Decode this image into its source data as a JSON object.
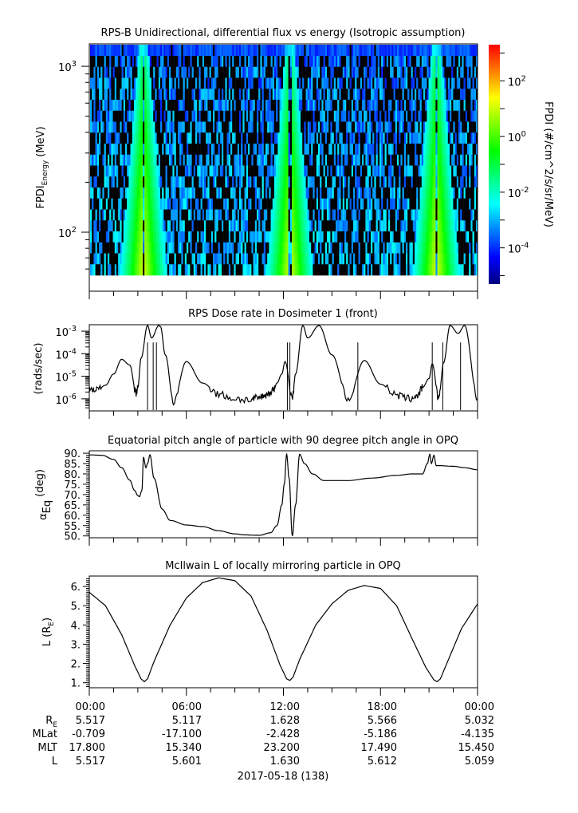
{
  "chart_data": [
    {
      "type": "heatmap",
      "title": "RPS-B  Unidirectional, differential flux vs energy (Isotropic assumption)",
      "ylabel_main": "FPDI",
      "ylabel_sub": "Energy",
      "ylabel_unit": "(MeV)",
      "yscale": "log",
      "ylim": [
        55,
        1350
      ],
      "yticks": [
        {
          "v": 100,
          "base": "10",
          "exp": "2"
        },
        {
          "v": 1000,
          "base": "10",
          "exp": "3"
        }
      ],
      "xlim": [
        0,
        24
      ],
      "belt_crossings_hours": [
        3.3,
        12.35,
        21.4
      ],
      "colorbar": {
        "label": "FPDI (#/cm^2/s/sr/MeV)",
        "scale": "log",
        "range_exp": [
          -5.3,
          3.3
        ],
        "ticks": [
          {
            "base": "10",
            "exp": "-4",
            "v": -4
          },
          {
            "base": "10",
            "exp": "-2",
            "v": -2
          },
          {
            "base": "10",
            "exp": "0",
            "v": 0
          },
          {
            "base": "10",
            "exp": "2",
            "v": 2
          }
        ],
        "colors": [
          "#00007f",
          "#0000ff",
          "#007fff",
          "#00ffff",
          "#00ff7f",
          "#00ff00",
          "#7fff00",
          "#ffff00",
          "#ff7f00",
          "#ff0000"
        ]
      }
    },
    {
      "type": "line",
      "title": "RPS  Dose rate in Dosimeter 1 (front)",
      "ylabel": "(rads/sec)",
      "yscale": "log",
      "ylim_exp": [
        -6.5,
        -2.75
      ],
      "yticks": [
        {
          "base": "10",
          "exp": "-3",
          "v": -3
        },
        {
          "base": "10",
          "exp": "-4",
          "v": -4
        },
        {
          "base": "10",
          "exp": "-5",
          "v": -5
        },
        {
          "base": "10",
          "exp": "-6",
          "v": -6
        }
      ],
      "xlim": [
        0,
        24
      ],
      "x": [
        0,
        0.5,
        1,
        1.5,
        2.0,
        2.5,
        2.9,
        3.0,
        3.2,
        3.6,
        3.85,
        4.3,
        4.4,
        4.7,
        5.2,
        6.0,
        7.0,
        8.0,
        9.0,
        10.0,
        10.5,
        11.0,
        11.4,
        11.6,
        11.9,
        12.1,
        12.55,
        12.75,
        13.2,
        13.5,
        14.2,
        15.0,
        16.0,
        17.0,
        18.0,
        19.0,
        19.8,
        20.3,
        20.6,
        21.0,
        21.2,
        21.6,
        21.9,
        22.3,
        22.8,
        23.2,
        24.0
      ],
      "log10_y": [
        -5.55,
        -5.6,
        -5.4,
        -4.9,
        -4.25,
        -4.5,
        -5.75,
        -5.5,
        -4.2,
        -2.75,
        -3.3,
        -2.75,
        -2.8,
        -4.05,
        -6.1,
        -4.35,
        -5.3,
        -5.8,
        -6.0,
        -6.05,
        -5.95,
        -5.8,
        -5.6,
        -5.3,
        -4.9,
        -4.35,
        -5.95,
        -4.9,
        -2.75,
        -3.3,
        -2.75,
        -4.05,
        -6.0,
        -4.3,
        -5.35,
        -5.85,
        -6.0,
        -5.85,
        -5.5,
        -5.1,
        -4.45,
        -6.0,
        -4.4,
        -2.75,
        -3.1,
        -2.75,
        -6.0
      ]
    },
    {
      "type": "line",
      "title": "Equatorial pitch angle of particle with 90 degree pitch angle in OPQ",
      "ylabel": "α",
      "ylabel_sub": "Eq",
      "ylabel_unit": "(deg)",
      "ylim": [
        49.5,
        90.8
      ],
      "yticks": [
        "50.",
        "55.",
        "60.",
        "65.",
        "70.",
        "75.",
        "80.",
        "85.",
        "90."
      ],
      "xlim": [
        0,
        24
      ],
      "x": [
        0,
        0.8,
        1.5,
        2.0,
        2.5,
        2.8,
        3.0,
        3.1,
        3.25,
        3.35,
        3.5,
        3.6,
        3.75,
        4.0,
        4.5,
        5.0,
        6.0,
        7.0,
        8.0,
        9.0,
        9.6,
        10.5,
        11.2,
        11.6,
        11.9,
        12.05,
        12.2,
        12.35,
        12.55,
        12.75,
        13.0,
        13.3,
        13.8,
        14.5,
        16.0,
        17.5,
        19.0,
        20.0,
        20.6,
        20.9,
        21.05,
        21.15,
        21.3,
        21.45,
        21.6,
        22.5,
        23.2,
        24.0
      ],
      "y": [
        89.2,
        89.0,
        87.0,
        83.0,
        77.0,
        72.0,
        69.5,
        69.0,
        72.0,
        88.0,
        83.0,
        85.0,
        89.2,
        78.0,
        63.0,
        57.5,
        55.3,
        54.5,
        52.5,
        51.0,
        50.5,
        50.3,
        51.5,
        55.0,
        65.0,
        75.0,
        89.5,
        78.0,
        50.0,
        65.0,
        89.5,
        85.0,
        80.0,
        76.8,
        76.8,
        78.0,
        79.3,
        80.0,
        80.0,
        85.0,
        89.5,
        85.0,
        89.0,
        84.0,
        84.0,
        83.7,
        83.0,
        82.0
      ]
    },
    {
      "type": "line",
      "title": "McIlwain L of locally mirroring particle in OPQ",
      "ylabel": "L (R",
      "ylabel_sub": "E",
      "ylabel_unit": ")",
      "ylim": [
        0.78,
        6.5
      ],
      "yticks": [
        "1.",
        "2.",
        "3.",
        "4.",
        "5.",
        "6."
      ],
      "xlim": [
        0,
        24
      ],
      "x": [
        0,
        1.0,
        2.0,
        2.8,
        3.2,
        3.4,
        3.6,
        4.0,
        5.0,
        6.0,
        7.0,
        8.0,
        9.0,
        10.0,
        11.0,
        11.8,
        12.2,
        12.4,
        12.6,
        13.0,
        14.0,
        15.0,
        16.0,
        17.0,
        18.0,
        19.0,
        20.0,
        20.8,
        21.3,
        21.5,
        21.7,
        22.2,
        23.0,
        24.0
      ],
      "y": [
        5.7,
        5.0,
        3.5,
        1.9,
        1.2,
        1.05,
        1.2,
        2.1,
        4.0,
        5.4,
        6.2,
        6.45,
        6.3,
        5.5,
        3.7,
        1.9,
        1.2,
        1.12,
        1.3,
        2.2,
        4.0,
        5.1,
        5.8,
        6.05,
        5.9,
        5.0,
        3.2,
        1.8,
        1.15,
        1.05,
        1.2,
        2.2,
        3.8,
        5.1
      ]
    }
  ],
  "time_axis": {
    "tick_labels": [
      "00:00",
      "06:00",
      "12:00",
      "18:00",
      "00:00"
    ],
    "rows": [
      {
        "label": "R",
        "label_sub": "E",
        "values": [
          "5.517",
          "5.117",
          "1.628",
          "5.566",
          "5.032"
        ]
      },
      {
        "label": "MLat",
        "label_sub": "",
        "values": [
          "-0.709",
          "-17.100",
          "-2.428",
          "-5.186",
          "-4.135"
        ]
      },
      {
        "label": "MLT",
        "label_sub": "",
        "values": [
          "17.800",
          "15.340",
          "23.200",
          "17.490",
          "15.450"
        ]
      },
      {
        "label": "L",
        "label_sub": "",
        "values": [
          "5.517",
          "5.601",
          "1.630",
          "5.612",
          "5.059"
        ]
      }
    ],
    "date_label": "2017-05-18 (138)"
  }
}
